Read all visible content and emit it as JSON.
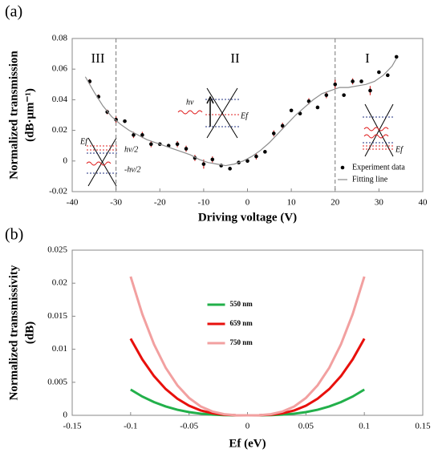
{
  "chart_data": [
    {
      "type": "scatter",
      "panel_label": "(a)",
      "y_label": [
        "Normalized transmission",
        "(dB·μm⁻¹)"
      ],
      "x_label": "Driving voltage  (V)",
      "xlim": [
        -40,
        40
      ],
      "xticks": [
        -40,
        -30,
        -20,
        -10,
        0,
        10,
        20,
        30,
        40
      ],
      "ylim": [
        -0.02,
        0.08
      ],
      "yticks": [
        -0.02,
        0,
        0.02,
        0.04,
        0.06,
        0.08
      ],
      "legend": "lower right",
      "error_color": "#d42a2a",
      "vlines": [
        -30,
        20
      ],
      "regions": [
        "III",
        "II",
        "I"
      ],
      "annotations": [
        "Ef",
        "hν/2",
        "-hν/2",
        "hν",
        "Ef",
        "Ef"
      ],
      "series": [
        {
          "name": "Experiment data",
          "style": "markers",
          "color": "#000000",
          "x": [
            -36,
            -34,
            -32,
            -30,
            -28,
            -26,
            -24,
            -22,
            -20,
            -18,
            -16,
            -14,
            -12,
            -10,
            -8,
            -6,
            -4,
            -2,
            0,
            2,
            4,
            6,
            8,
            10,
            12,
            14,
            16,
            18,
            20,
            22,
            24,
            26,
            28,
            30,
            32,
            34
          ],
          "values": [
            0.052,
            0.042,
            0.032,
            0.027,
            0.026,
            0.017,
            0.017,
            0.011,
            0.011,
            0.01,
            0.011,
            0.008,
            0.002,
            -0.002,
            0.001,
            -0.003,
            -0.005,
            -0.001,
            0.0,
            0.003,
            0.006,
            0.018,
            0.023,
            0.033,
            0.031,
            0.039,
            0.035,
            0.043,
            0.05,
            0.043,
            0.052,
            0.052,
            0.046,
            0.058,
            0.056,
            0.068
          ],
          "errors": [
            0.0015,
            0.0015,
            0.0015,
            0.002,
            0.001,
            0.002,
            0.002,
            0.002,
            0.001,
            0.001,
            0.002,
            0.002,
            0.002,
            0.003,
            0.002,
            0.001,
            0.001,
            0.001,
            0.001,
            0.002,
            0.001,
            0.002,
            0.002,
            0.001,
            0.001,
            0.002,
            0.001,
            0.002,
            0.003,
            0.001,
            0.002,
            0.001,
            0.003,
            0.001,
            0.001,
            0.001
          ]
        },
        {
          "name": "Fitting line",
          "style": "line",
          "color": "#8c8c8c",
          "x": [
            -37,
            -35,
            -33,
            -31,
            -29,
            -27,
            -25,
            -23,
            -21,
            -19,
            -17,
            -15,
            -13,
            -11,
            -9,
            -7,
            -5,
            -3,
            -1,
            1,
            3,
            5,
            7,
            9,
            11,
            13,
            15,
            17,
            19,
            21,
            23,
            25,
            27,
            29,
            31,
            33,
            34
          ],
          "values": [
            0.055,
            0.045,
            0.036,
            0.029,
            0.024,
            0.02,
            0.017,
            0.014,
            0.012,
            0.01,
            0.008,
            0.006,
            0.004,
            0.001,
            -0.001,
            -0.002,
            -0.003,
            -0.002,
            0.0,
            0.003,
            0.007,
            0.012,
            0.018,
            0.024,
            0.03,
            0.035,
            0.04,
            0.044,
            0.046,
            0.048,
            0.048,
            0.049,
            0.05,
            0.052,
            0.056,
            0.062,
            0.067
          ]
        }
      ]
    },
    {
      "type": "line",
      "panel_label": "(b)",
      "y_label": [
        "Normalized transmissivity",
        "(dB)"
      ],
      "x_label": "Ef  (eV)",
      "xlim": [
        -0.15,
        0.15
      ],
      "xticks": [
        -0.15,
        -0.1,
        -0.05,
        0,
        0.05,
        0.1,
        0.15
      ],
      "ylim": [
        0,
        0.025
      ],
      "yticks": [
        0,
        0.005,
        0.01,
        0.015,
        0.02,
        0.025
      ],
      "legend": "center",
      "x": [
        -0.1,
        -0.09,
        -0.08,
        -0.07,
        -0.06,
        -0.05,
        -0.04,
        -0.03,
        -0.02,
        -0.01,
        0,
        0.01,
        0.02,
        0.03,
        0.04,
        0.05,
        0.06,
        0.07,
        0.08,
        0.09,
        0.1
      ],
      "series": [
        {
          "name": "550 nm",
          "color": "#22b04a",
          "values": [
            0.0039,
            0.00284,
            0.002,
            0.00134,
            0.00084,
            0.00049,
            0.00025,
            0.00011,
            3e-05,
            0,
            0,
            0,
            3e-05,
            0.00011,
            0.00025,
            0.00049,
            0.00084,
            0.00134,
            0.002,
            0.00284,
            0.0039
          ]
        },
        {
          "name": "659 nm",
          "color": "#e8100c",
          "values": [
            0.0116,
            0.00846,
            0.00594,
            0.00398,
            0.00251,
            0.00145,
            0.00074,
            0.00031,
            9e-05,
            1e-05,
            0,
            1e-05,
            9e-05,
            0.00031,
            0.00074,
            0.00145,
            0.00251,
            0.00398,
            0.00594,
            0.00846,
            0.0116
          ]
        },
        {
          "name": "750 nm",
          "color": "#f2a0a0",
          "values": [
            0.021,
            0.01531,
            0.01075,
            0.0072,
            0.00454,
            0.00263,
            0.00134,
            0.00057,
            0.00017,
            2e-05,
            0,
            2e-05,
            0.00017,
            0.00057,
            0.00134,
            0.00263,
            0.00454,
            0.0072,
            0.01075,
            0.01531,
            0.021
          ]
        }
      ]
    }
  ]
}
